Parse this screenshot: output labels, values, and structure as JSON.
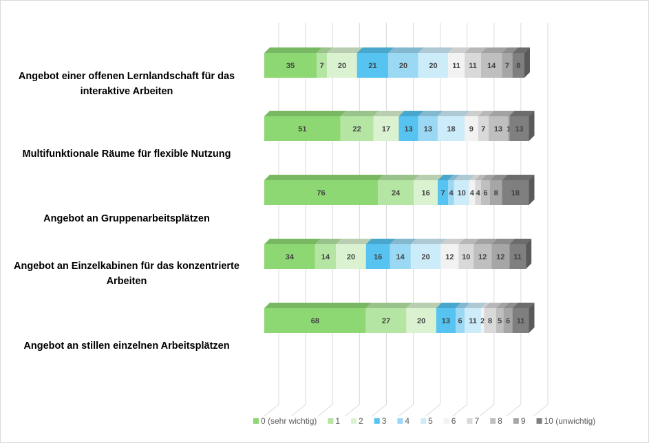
{
  "chart_data": {
    "type": "bar3d_stacked_horizontal",
    "categories": [
      "Angebot einer offenen Lernlandschaft für das interaktive Arbeiten",
      "Multifunktionale Räume für flexible Nutzung",
      "Angebot an Gruppenarbeitsplätzen",
      "Angebot an Einzelkabinen für das konzentrierte Arbeiten",
      "Angebot an stillen einzelnen Arbeitsplätzen"
    ],
    "series": [
      {
        "name": "0 (sehr wichtig)",
        "color": "#8ed873",
        "values": [
          35,
          51,
          76,
          34,
          68
        ]
      },
      {
        "name": "1",
        "color": "#b4e5a2",
        "values": [
          7,
          22,
          24,
          14,
          27
        ]
      },
      {
        "name": "2",
        "color": "#daf2d0",
        "values": [
          20,
          17,
          16,
          20,
          20
        ]
      },
      {
        "name": "3",
        "color": "#56c3f0",
        "values": [
          21,
          13,
          7,
          16,
          13
        ]
      },
      {
        "name": "4",
        "color": "#9bd8f4",
        "values": [
          20,
          13,
          4,
          14,
          6
        ]
      },
      {
        "name": "5",
        "color": "#cdecf9",
        "values": [
          20,
          18,
          10,
          20,
          11
        ]
      },
      {
        "name": "6",
        "color": "#f2f2f2",
        "values": [
          11,
          9,
          4,
          12,
          2
        ]
      },
      {
        "name": "7",
        "color": "#d9d9d9",
        "values": [
          11,
          7,
          4,
          10,
          8
        ]
      },
      {
        "name": "8",
        "color": "#bfbfbf",
        "values": [
          14,
          13,
          6,
          12,
          5
        ]
      },
      {
        "name": "9",
        "color": "#a6a6a6",
        "values": [
          7,
          1,
          8,
          12,
          6
        ]
      },
      {
        "name": "10 (unwichtig)",
        "color": "#7f7f7f",
        "values": [
          8,
          13,
          18,
          11,
          11
        ]
      }
    ],
    "xlim": [
      0,
      180
    ],
    "xticks": [
      0,
      18,
      36,
      54,
      72,
      90,
      108,
      126,
      144,
      162,
      180
    ],
    "grid": true,
    "legend": "bottom"
  }
}
